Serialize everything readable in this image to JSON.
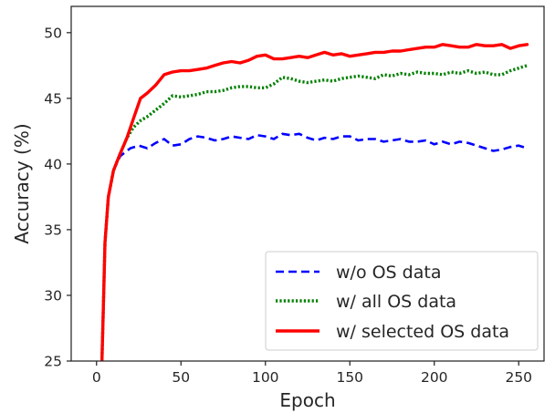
{
  "chart_data": {
    "type": "line",
    "xlabel": "Epoch",
    "ylabel": "Accuracy (%)",
    "xlim": [
      -15,
      265
    ],
    "ylim": [
      25,
      52
    ],
    "xticks": [
      0,
      50,
      100,
      150,
      200,
      250
    ],
    "yticks": [
      25,
      30,
      35,
      40,
      45,
      50
    ],
    "legend_position": "lower-right",
    "grid": false,
    "series": [
      {
        "name": "w/o OS data",
        "color": "#0000ff",
        "style": "dashed",
        "points": [
          [
            3,
            24
          ],
          [
            4,
            29
          ],
          [
            5,
            34
          ],
          [
            7,
            37.5
          ],
          [
            10,
            39.5
          ],
          [
            14,
            40.6
          ],
          [
            20,
            41.2
          ],
          [
            25,
            41.4
          ],
          [
            30,
            41.2
          ],
          [
            35,
            41.6
          ],
          [
            40,
            41.9
          ],
          [
            45,
            41.4
          ],
          [
            50,
            41.5
          ],
          [
            55,
            41.9
          ],
          [
            60,
            42.1
          ],
          [
            65,
            42
          ],
          [
            70,
            41.8
          ],
          [
            75,
            41.9
          ],
          [
            80,
            42.1
          ],
          [
            85,
            42
          ],
          [
            90,
            41.9
          ],
          [
            95,
            42.2
          ],
          [
            100,
            42.1
          ],
          [
            105,
            41.9
          ],
          [
            110,
            42.3
          ],
          [
            115,
            42.2
          ],
          [
            120,
            42.3
          ],
          [
            125,
            42
          ],
          [
            130,
            41.8
          ],
          [
            135,
            42
          ],
          [
            140,
            41.9
          ],
          [
            145,
            42.1
          ],
          [
            150,
            42.1
          ],
          [
            155,
            41.8
          ],
          [
            160,
            41.9
          ],
          [
            165,
            41.9
          ],
          [
            170,
            41.7
          ],
          [
            175,
            41.8
          ],
          [
            180,
            41.9
          ],
          [
            185,
            41.7
          ],
          [
            190,
            41.7
          ],
          [
            195,
            41.8
          ],
          [
            200,
            41.5
          ],
          [
            205,
            41.7
          ],
          [
            210,
            41.5
          ],
          [
            215,
            41.7
          ],
          [
            220,
            41.6
          ],
          [
            225,
            41.4
          ],
          [
            230,
            41.2
          ],
          [
            235,
            41
          ],
          [
            240,
            41.1
          ],
          [
            245,
            41.3
          ],
          [
            250,
            41.4
          ],
          [
            255,
            41.2
          ]
        ]
      },
      {
        "name": "w/ all OS data",
        "color": "#008000",
        "style": "dotted",
        "points": [
          [
            3,
            24
          ],
          [
            4,
            29
          ],
          [
            5,
            34
          ],
          [
            7,
            37.5
          ],
          [
            10,
            39.5
          ],
          [
            14,
            40.8
          ],
          [
            18,
            42
          ],
          [
            22,
            42.8
          ],
          [
            26,
            43.3
          ],
          [
            30,
            43.6
          ],
          [
            35,
            44.1
          ],
          [
            40,
            44.6
          ],
          [
            45,
            45.2
          ],
          [
            50,
            45.1
          ],
          [
            55,
            45.2
          ],
          [
            60,
            45.3
          ],
          [
            65,
            45.5
          ],
          [
            70,
            45.5
          ],
          [
            75,
            45.6
          ],
          [
            80,
            45.8
          ],
          [
            85,
            45.9
          ],
          [
            90,
            45.9
          ],
          [
            95,
            45.8
          ],
          [
            100,
            45.8
          ],
          [
            105,
            46.1
          ],
          [
            110,
            46.6
          ],
          [
            115,
            46.5
          ],
          [
            120,
            46.3
          ],
          [
            125,
            46.2
          ],
          [
            130,
            46.3
          ],
          [
            135,
            46.4
          ],
          [
            140,
            46.3
          ],
          [
            145,
            46.5
          ],
          [
            150,
            46.6
          ],
          [
            155,
            46.7
          ],
          [
            160,
            46.6
          ],
          [
            165,
            46.5
          ],
          [
            170,
            46.8
          ],
          [
            175,
            46.7
          ],
          [
            180,
            46.9
          ],
          [
            185,
            46.8
          ],
          [
            190,
            47
          ],
          [
            195,
            46.9
          ],
          [
            200,
            46.9
          ],
          [
            205,
            46.8
          ],
          [
            210,
            47
          ],
          [
            215,
            46.9
          ],
          [
            220,
            47.1
          ],
          [
            225,
            46.9
          ],
          [
            230,
            47
          ],
          [
            235,
            46.8
          ],
          [
            240,
            46.8
          ],
          [
            245,
            47.1
          ],
          [
            250,
            47.3
          ],
          [
            255,
            47.5
          ]
        ]
      },
      {
        "name": "w/ selected OS data",
        "color": "#ff0000",
        "style": "solid",
        "points": [
          [
            3,
            24
          ],
          [
            4,
            29
          ],
          [
            5,
            34
          ],
          [
            7,
            37.5
          ],
          [
            10,
            39.5
          ],
          [
            14,
            40.8
          ],
          [
            18,
            42
          ],
          [
            22,
            43.5
          ],
          [
            26,
            45
          ],
          [
            30,
            45.4
          ],
          [
            35,
            46
          ],
          [
            40,
            46.8
          ],
          [
            45,
            47
          ],
          [
            50,
            47.1
          ],
          [
            55,
            47.1
          ],
          [
            60,
            47.2
          ],
          [
            65,
            47.3
          ],
          [
            70,
            47.5
          ],
          [
            75,
            47.7
          ],
          [
            80,
            47.8
          ],
          [
            85,
            47.7
          ],
          [
            90,
            47.9
          ],
          [
            95,
            48.2
          ],
          [
            100,
            48.3
          ],
          [
            105,
            48
          ],
          [
            110,
            48
          ],
          [
            115,
            48.1
          ],
          [
            120,
            48.2
          ],
          [
            125,
            48.1
          ],
          [
            130,
            48.3
          ],
          [
            135,
            48.5
          ],
          [
            140,
            48.3
          ],
          [
            145,
            48.4
          ],
          [
            150,
            48.2
          ],
          [
            155,
            48.3
          ],
          [
            160,
            48.4
          ],
          [
            165,
            48.5
          ],
          [
            170,
            48.5
          ],
          [
            175,
            48.6
          ],
          [
            180,
            48.6
          ],
          [
            185,
            48.7
          ],
          [
            190,
            48.8
          ],
          [
            195,
            48.9
          ],
          [
            200,
            48.9
          ],
          [
            205,
            49.1
          ],
          [
            210,
            49
          ],
          [
            215,
            48.9
          ],
          [
            220,
            48.9
          ],
          [
            225,
            49.1
          ],
          [
            230,
            49
          ],
          [
            235,
            49
          ],
          [
            240,
            49.1
          ],
          [
            245,
            48.8
          ],
          [
            250,
            49
          ],
          [
            255,
            49.1
          ]
        ]
      }
    ]
  }
}
